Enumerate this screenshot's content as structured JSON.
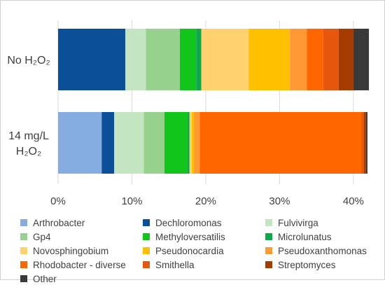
{
  "chart_data": {
    "type": "bar",
    "orientation": "horizontal",
    "stacked": true,
    "categories": [
      "No H₂O₂",
      "14 mg/L H₂O₂"
    ],
    "x_ticks": [
      "0%",
      "10%",
      "20%",
      "30%",
      "40%"
    ],
    "xlim": [
      0,
      42
    ],
    "grid": true,
    "legend_position": "bottom",
    "series": [
      {
        "name": "Arthrobacter",
        "color": "#86ADE0",
        "values": [
          0.0,
          5.9
        ]
      },
      {
        "name": "Dechloromonas",
        "color": "#0A4F98",
        "values": [
          9.1,
          1.7
        ]
      },
      {
        "name": "Fulvivirga",
        "color": "#C3E6C1",
        "values": [
          2.8,
          4.0
        ]
      },
      {
        "name": "Gp4",
        "color": "#96D28E",
        "values": [
          4.6,
          2.8
        ]
      },
      {
        "name": "Methyloversatilis",
        "color": "#11C51B",
        "values": [
          2.2,
          3.1
        ]
      },
      {
        "name": "Microlunatus",
        "color": "#0DA84B",
        "values": [
          0.7,
          0.3
        ]
      },
      {
        "name": "Novosphingobium",
        "color": "#FFD26F",
        "values": [
          6.4,
          0.3
        ]
      },
      {
        "name": "Pseudonocardia",
        "color": "#FFC000",
        "values": [
          5.6,
          0.3
        ]
      },
      {
        "name": "Pseudoxanthomonas",
        "color": "#FF9933",
        "values": [
          2.3,
          0.8
        ]
      },
      {
        "name": "Rhodobacter - diverse",
        "color": "#FF6600",
        "values": [
          2.2,
          21.9
        ]
      },
      {
        "name": "Smithella",
        "color": "#E4570C",
        "values": [
          2.1,
          0.3
        ]
      },
      {
        "name": "Streptomyces",
        "color": "#A63B00",
        "values": [
          2.0,
          0.3
        ]
      },
      {
        "name": "Other",
        "color": "#3A3A3A",
        "values": [
          2.1,
          0.2
        ]
      }
    ],
    "category_label_lines": [
      [
        "No H₂O₂"
      ],
      [
        "14 mg/L",
        "H₂O₂"
      ]
    ]
  }
}
